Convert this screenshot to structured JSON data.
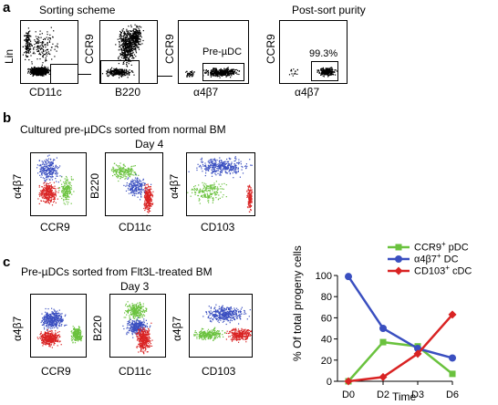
{
  "panel_a": {
    "letter": "a",
    "sorting_title": "Sorting scheme",
    "postsort_title": "Post-sort purity",
    "plots": [
      {
        "x": "CD11c",
        "y": "Lin"
      },
      {
        "x": "B220",
        "y": "CCR9"
      },
      {
        "x": "α4β7",
        "y": "CCR9",
        "gate": "Pre-µDC"
      },
      {
        "x": "α4β7",
        "y": "CCR9",
        "gate": "99.3%"
      }
    ]
  },
  "panel_b": {
    "letter": "b",
    "title": "Cultured pre-µDCs sorted from normal BM",
    "day": "Day 4",
    "plots": [
      {
        "x": "CCR9",
        "y": "α4β7"
      },
      {
        "x": "CD11c",
        "y": "B220"
      },
      {
        "x": "CD103",
        "y": "α4β7"
      }
    ]
  },
  "panel_c": {
    "letter": "c",
    "title": "Pre-µDCs sorted from Flt3L-treated BM",
    "day": "Day 3",
    "plots": [
      {
        "x": "CCR9",
        "y": "α4β7"
      },
      {
        "x": "CD11c",
        "y": "B220"
      },
      {
        "x": "CD103",
        "y": "α4β7"
      }
    ]
  },
  "colors": {
    "green": "#6ac23e",
    "blue": "#3a4fc0",
    "red": "#d92323"
  },
  "chart_data": {
    "type": "line",
    "categories": [
      "D0",
      "D2",
      "D3",
      "D6"
    ],
    "ylabel": "% Of total progeny cells",
    "xlabel": "Time",
    "ylim": [
      0,
      100
    ],
    "yticks": [
      "0",
      "20",
      "40",
      "60",
      "80",
      "100"
    ],
    "legend_position": "top-right",
    "series": [
      {
        "name": "CCR9+ pDC",
        "label_main": "CCR9",
        "label_sup": "+",
        "label_rest": " pDC",
        "color": "#6ac23e",
        "marker": "square",
        "values": [
          0,
          37,
          33,
          7
        ]
      },
      {
        "name": "α4β7+ DC",
        "label_main": "α4β7",
        "label_sup": "+",
        "label_rest": " DC",
        "color": "#3a4fc0",
        "marker": "circle",
        "values": [
          99,
          50,
          31,
          22
        ]
      },
      {
        "name": "CD103+ cDC",
        "label_main": "CD103",
        "label_sup": "+",
        "label_rest": " cDC",
        "color": "#d92323",
        "marker": "diamond",
        "values": [
          0,
          4,
          26,
          63
        ]
      }
    ]
  }
}
